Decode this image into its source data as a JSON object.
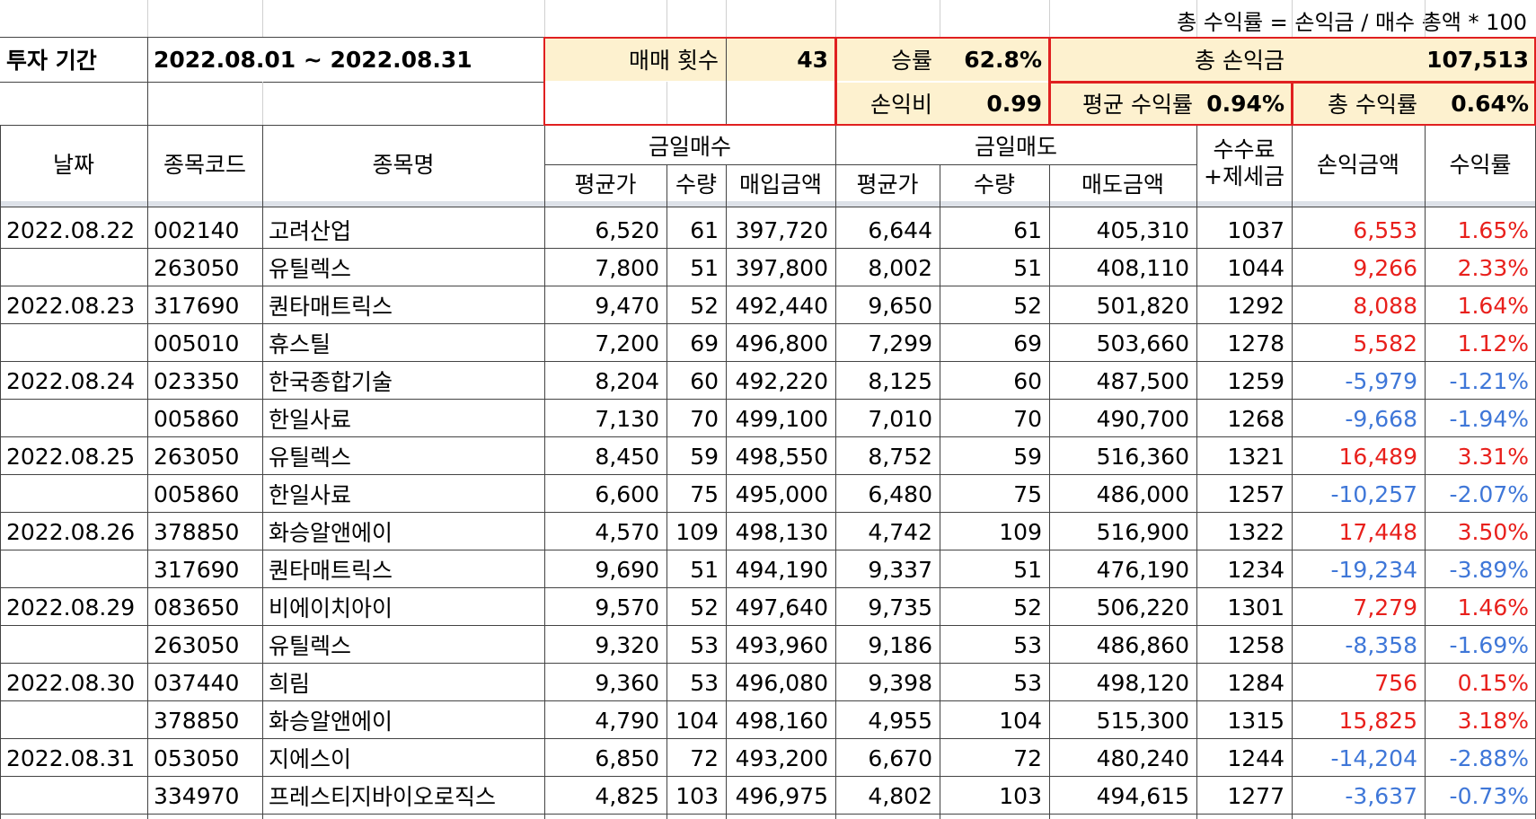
{
  "formula_note": "총 수익률 = 손익금 / 매수 총액 * 100",
  "summary": {
    "period_label": "투자 기간",
    "period_value": "2022.08.01 ~ 2022.08.31",
    "trade_count_label": "매매 횟수",
    "trade_count_value": "43",
    "win_rate_label": "승률",
    "win_rate_value": "62.8%",
    "total_profit_label": "총 손익금",
    "total_profit_value": "107,513",
    "pl_ratio_label": "손익비",
    "pl_ratio_value": "0.99",
    "avg_return_label": "평균 수익률",
    "avg_return_value": "0.94%",
    "total_return_label": "총 수익률",
    "total_return_value": "0.64%"
  },
  "headers": {
    "date": "날짜",
    "code": "종목코드",
    "name": "종목명",
    "buy_group": "금일매수",
    "buy_avg": "평균가",
    "buy_qty": "수량",
    "buy_amount": "매입금액",
    "sell_group": "금일매도",
    "sell_avg": "평균가",
    "sell_qty": "수량",
    "sell_amount": "매도금액",
    "fee_line1": "수수료",
    "fee_line2": "+제세금",
    "profit": "손익금액",
    "return": "수익률"
  },
  "rows": [
    {
      "date": "2022.08.22",
      "code": "002140",
      "name": "고려산업",
      "buy_avg": "6,520",
      "buy_qty": "61",
      "buy_amount": "397,720",
      "sell_avg": "6,644",
      "sell_qty": "61",
      "sell_amount": "405,310",
      "fee": "1037",
      "profit": "6,553",
      "ret": "1.65%",
      "sign": "pos"
    },
    {
      "date": "",
      "code": "263050",
      "name": "유틸렉스",
      "buy_avg": "7,800",
      "buy_qty": "51",
      "buy_amount": "397,800",
      "sell_avg": "8,002",
      "sell_qty": "51",
      "sell_amount": "408,110",
      "fee": "1044",
      "profit": "9,266",
      "ret": "2.33%",
      "sign": "pos"
    },
    {
      "date": "2022.08.23",
      "code": "317690",
      "name": "퀀타매트릭스",
      "buy_avg": "9,470",
      "buy_qty": "52",
      "buy_amount": "492,440",
      "sell_avg": "9,650",
      "sell_qty": "52",
      "sell_amount": "501,820",
      "fee": "1292",
      "profit": "8,088",
      "ret": "1.64%",
      "sign": "pos"
    },
    {
      "date": "",
      "code": "005010",
      "name": "휴스틸",
      "buy_avg": "7,200",
      "buy_qty": "69",
      "buy_amount": "496,800",
      "sell_avg": "7,299",
      "sell_qty": "69",
      "sell_amount": "503,660",
      "fee": "1278",
      "profit": "5,582",
      "ret": "1.12%",
      "sign": "pos"
    },
    {
      "date": "2022.08.24",
      "code": "023350",
      "name": "한국종합기술",
      "buy_avg": "8,204",
      "buy_qty": "60",
      "buy_amount": "492,220",
      "sell_avg": "8,125",
      "sell_qty": "60",
      "sell_amount": "487,500",
      "fee": "1259",
      "profit": "-5,979",
      "ret": "-1.21%",
      "sign": "neg"
    },
    {
      "date": "",
      "code": "005860",
      "name": "한일사료",
      "buy_avg": "7,130",
      "buy_qty": "70",
      "buy_amount": "499,100",
      "sell_avg": "7,010",
      "sell_qty": "70",
      "sell_amount": "490,700",
      "fee": "1268",
      "profit": "-9,668",
      "ret": "-1.94%",
      "sign": "neg"
    },
    {
      "date": "2022.08.25",
      "code": "263050",
      "name": "유틸렉스",
      "buy_avg": "8,450",
      "buy_qty": "59",
      "buy_amount": "498,550",
      "sell_avg": "8,752",
      "sell_qty": "59",
      "sell_amount": "516,360",
      "fee": "1321",
      "profit": "16,489",
      "ret": "3.31%",
      "sign": "pos"
    },
    {
      "date": "",
      "code": "005860",
      "name": "한일사료",
      "buy_avg": "6,600",
      "buy_qty": "75",
      "buy_amount": "495,000",
      "sell_avg": "6,480",
      "sell_qty": "75",
      "sell_amount": "486,000",
      "fee": "1257",
      "profit": "-10,257",
      "ret": "-2.07%",
      "sign": "neg"
    },
    {
      "date": "2022.08.26",
      "code": "378850",
      "name": "화승알앤에이",
      "buy_avg": "4,570",
      "buy_qty": "109",
      "buy_amount": "498,130",
      "sell_avg": "4,742",
      "sell_qty": "109",
      "sell_amount": "516,900",
      "fee": "1322",
      "profit": "17,448",
      "ret": "3.50%",
      "sign": "pos"
    },
    {
      "date": "",
      "code": "317690",
      "name": "퀀타매트릭스",
      "buy_avg": "9,690",
      "buy_qty": "51",
      "buy_amount": "494,190",
      "sell_avg": "9,337",
      "sell_qty": "51",
      "sell_amount": "476,190",
      "fee": "1234",
      "profit": "-19,234",
      "ret": "-3.89%",
      "sign": "neg"
    },
    {
      "date": "2022.08.29",
      "code": "083650",
      "name": "비에이치아이",
      "buy_avg": "9,570",
      "buy_qty": "52",
      "buy_amount": "497,640",
      "sell_avg": "9,735",
      "sell_qty": "52",
      "sell_amount": "506,220",
      "fee": "1301",
      "profit": "7,279",
      "ret": "1.46%",
      "sign": "pos"
    },
    {
      "date": "",
      "code": "263050",
      "name": "유틸렉스",
      "buy_avg": "9,320",
      "buy_qty": "53",
      "buy_amount": "493,960",
      "sell_avg": "9,186",
      "sell_qty": "53",
      "sell_amount": "486,860",
      "fee": "1258",
      "profit": "-8,358",
      "ret": "-1.69%",
      "sign": "neg"
    },
    {
      "date": "2022.08.30",
      "code": "037440",
      "name": "희림",
      "buy_avg": "9,360",
      "buy_qty": "53",
      "buy_amount": "496,080",
      "sell_avg": "9,398",
      "sell_qty": "53",
      "sell_amount": "498,120",
      "fee": "1284",
      "profit": "756",
      "ret": "0.15%",
      "sign": "pos"
    },
    {
      "date": "",
      "code": "378850",
      "name": "화승알앤에이",
      "buy_avg": "4,790",
      "buy_qty": "104",
      "buy_amount": "498,160",
      "sell_avg": "4,955",
      "sell_qty": "104",
      "sell_amount": "515,300",
      "fee": "1315",
      "profit": "15,825",
      "ret": "3.18%",
      "sign": "pos"
    },
    {
      "date": "2022.08.31",
      "code": "053050",
      "name": "지에스이",
      "buy_avg": "6,850",
      "buy_qty": "72",
      "buy_amount": "493,200",
      "sell_avg": "6,670",
      "sell_qty": "72",
      "sell_amount": "480,240",
      "fee": "1244",
      "profit": "-14,204",
      "ret": "-2.88%",
      "sign": "neg"
    },
    {
      "date": "",
      "code": "334970",
      "name": "프레스티지바이오로직스",
      "buy_avg": "4,825",
      "buy_qty": "103",
      "buy_amount": "496,975",
      "sell_avg": "4,802",
      "sell_qty": "103",
      "sell_amount": "494,615",
      "fee": "1277",
      "profit": "-3,637",
      "ret": "-0.73%",
      "sign": "neg"
    }
  ],
  "colors": {
    "positive": "#e8201c",
    "negative": "#3f77d8",
    "highlight": "#fdf1cf",
    "box_border": "#e02020"
  }
}
